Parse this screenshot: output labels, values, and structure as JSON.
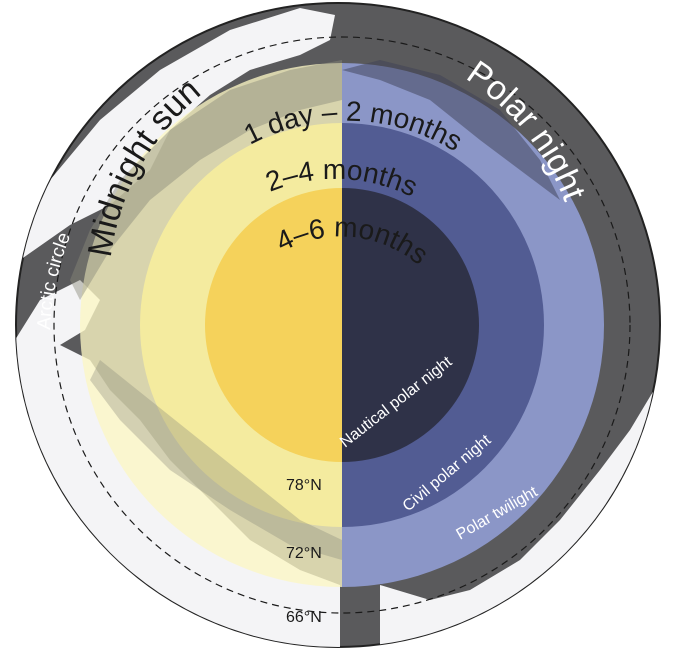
{
  "titles": {
    "midnight_sun": "Midnight sun",
    "polar_night": "Polar night",
    "arctic_circle": "Arctic circle"
  },
  "durations": {
    "outer": "1 day – 2 months",
    "middle": "2–4 months",
    "inner": "4–6 months"
  },
  "night_zones": {
    "nautical": "Nautical polar night",
    "civil": "Civil polar night",
    "twilight": "Polar twilight"
  },
  "latitudes": {
    "lat78": "78°N",
    "lat72": "72°N",
    "lat66": "66°N"
  },
  "colors": {
    "ocean": "#5a5a5c",
    "land": "#f4f4f6",
    "sun_outer": "#fbf6c4",
    "sun_middle": "#f9ef9c",
    "sun_inner": "#f4cf55",
    "night_outer": "#8f9bd0",
    "night_middle": "#525c93",
    "night_inner": "#2f3248"
  }
}
